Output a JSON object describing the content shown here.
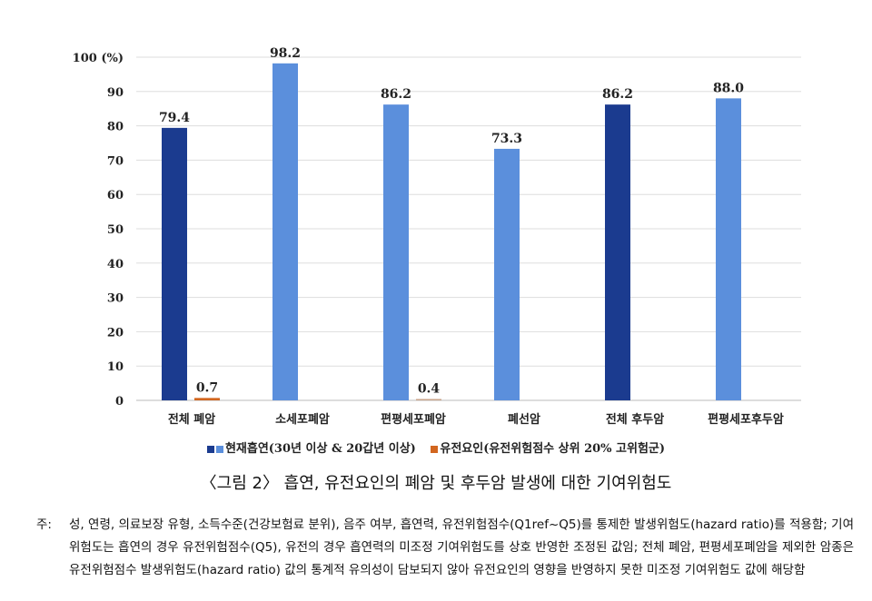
{
  "chart_data": {
    "type": "bar",
    "title": "",
    "ylabel": "",
    "y_unit_label": "100 (%)",
    "ylim": [
      0,
      100
    ],
    "yticks": [
      0,
      10,
      20,
      30,
      40,
      50,
      60,
      70,
      80,
      90,
      100
    ],
    "grid": true,
    "legend_position": "bottom",
    "categories": [
      "전체 폐암",
      "소세포폐암",
      "편평세포폐암",
      "폐선암",
      "전체 후두암",
      "편평세포후두암"
    ],
    "series": [
      {
        "name": "현재흡연(30년 이상 & 20갑년 이상)",
        "values": [
          79.4,
          98.2,
          86.2,
          73.3,
          86.2,
          88.0
        ],
        "colors": [
          "#1b3b8f",
          "#5b8fdc",
          "#5b8fdc",
          "#5b8fdc",
          "#1b3b8f",
          "#5b8fdc"
        ]
      },
      {
        "name": "유전요인(유전위험점수 상위 20% 고위험군)",
        "values": [
          0.7,
          null,
          0.4,
          null,
          null,
          null
        ],
        "colors": [
          "#d2661f",
          "#d2661f",
          "#c9a48a",
          "#d2661f",
          "#d2661f",
          "#d2661f"
        ]
      }
    ],
    "data_labels": [
      [
        "79.4",
        "98.2",
        "86.2",
        "73.3",
        "86.2",
        "88.0"
      ],
      [
        "0.7",
        null,
        "0.4",
        null,
        null,
        null
      ]
    ]
  },
  "legend": {
    "series1": "현재흡연(30년 이상 & 20갑년 이상)",
    "series2": "유전요인(유전위험점수 상위 20% 고위험군)",
    "series1_colors": [
      "#1b3b8f",
      "#5b8fdc"
    ],
    "series2_color": "#d2661f"
  },
  "caption": "〈그림 2〉 흡연, 유전요인의 폐암 및 후두암 발생에 대한 기여위험도",
  "note": {
    "label": "주:",
    "text": "성, 연령, 의료보장 유형, 소득수준(건강보험료 분위), 음주 여부, 흡연력, 유전위험점수(Q1ref~Q5)를 통제한 발생위험도(hazard ratio)를 적용함; 기여위험도는 흡연의 경우 유전위험점수(Q5), 유전의 경우 흡연력의 미조정 기여위험도를 상호 반영한 조정된 값임; 전체 폐암, 편평세포폐암을 제외한 암종은 유전위험점수 발생위험도(hazard ratio) 값의 통계적 유의성이 담보되지 않아 유전요인의 영향을 반영하지 못한 미조정 기여위험도 값에 해당함"
  }
}
